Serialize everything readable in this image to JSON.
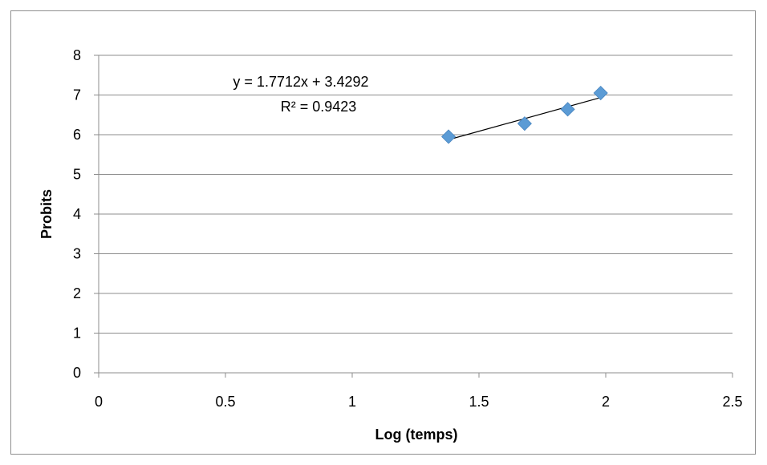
{
  "chart_data": {
    "type": "scatter",
    "title": "",
    "xlabel": "Log (temps)",
    "ylabel": "Probits",
    "xlim": [
      0,
      2.5
    ],
    "ylim": [
      0,
      8
    ],
    "xticks": [
      "0",
      "0.5",
      "1",
      "1.5",
      "2",
      "2.5"
    ],
    "yticks": [
      "0",
      "1",
      "2",
      "3",
      "4",
      "5",
      "6",
      "7",
      "8"
    ],
    "grid": "horizontal",
    "legend": "none",
    "series": [
      {
        "points": [
          {
            "x": 1.38,
            "y": 5.95
          },
          {
            "x": 1.68,
            "y": 6.28
          },
          {
            "x": 1.85,
            "y": 6.64
          },
          {
            "x": 1.98,
            "y": 7.05
          }
        ],
        "marker": "diamond",
        "color": "#5b9bd5"
      }
    ],
    "trendline": {
      "type": "linear",
      "slope": 1.7712,
      "intercept": 3.4292,
      "x_range": [
        1.38,
        1.98
      ],
      "color": "#000000",
      "equation": "y = 1.7712x + 3.4292",
      "r_squared": "R² = 0.9423"
    }
  }
}
